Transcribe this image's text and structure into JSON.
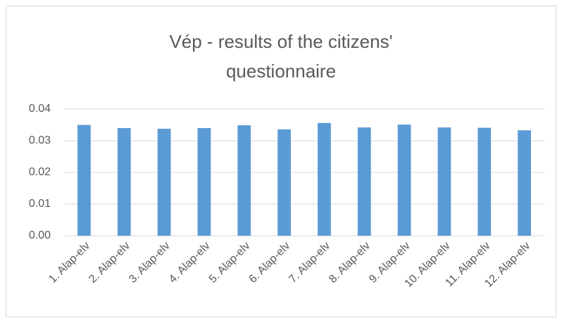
{
  "chart_data": {
    "type": "bar",
    "title": "Vép - results of the citizens' questionnaire",
    "categories": [
      "1. Alap-elv",
      "2. Alap-elv",
      "3. Alap-elv",
      "4. Alap-elv",
      "5. Alap-elv",
      "6. Alap-elv",
      "7. Alap-elv",
      "8. Alap-elv",
      "9. Alap-elv",
      "10. Alap-elv",
      "11. Alap-elv",
      "12. Alap-elv"
    ],
    "values": [
      0.035,
      0.034,
      0.0338,
      0.034,
      0.0349,
      0.0336,
      0.0356,
      0.0342,
      0.0351,
      0.0342,
      0.0341,
      0.0333
    ],
    "color": "#5b9bd5",
    "ylim": [
      0,
      0.04
    ],
    "yticks": [
      {
        "value": 0,
        "label": "0.00"
      },
      0.01,
      0.02,
      0.03,
      0.04
    ],
    "grid": true
  }
}
